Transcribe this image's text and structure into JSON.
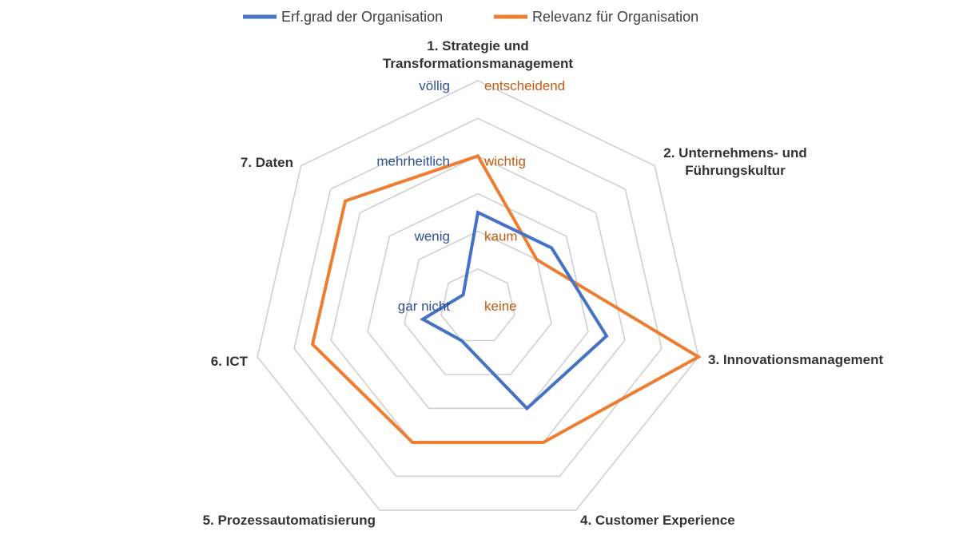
{
  "chart_data": {
    "type": "radar",
    "categories": [
      [
        "1. Strategie und",
        "Transformationsmanagement"
      ],
      [
        "2. Unternehmens- und",
        "Führungskultur"
      ],
      [
        "3. Innovationsmanagement"
      ],
      [
        "4. Customer Experience"
      ],
      [
        "5. Prozessautomatisierung"
      ],
      [
        "6. ICT"
      ],
      [
        "7. Daten"
      ]
    ],
    "rlim": [
      0,
      6
    ],
    "grid_levels": 6,
    "grid": true,
    "legend_position": "top",
    "series": [
      {
        "name": "Erf.grad der Organisation",
        "color": "#4472C4",
        "values": [
          2.5,
          2.5,
          3.5,
          3.0,
          1.0,
          1.5,
          0.5
        ]
      },
      {
        "name": "Relevanz für Organisation",
        "color": "#ED7D31",
        "values": [
          4.0,
          2.0,
          6.0,
          4.0,
          4.0,
          4.5,
          4.5
        ]
      }
    ],
    "scale_labels": [
      {
        "text": "völlig",
        "color": "#2F4F8F",
        "side": "left",
        "level": 6
      },
      {
        "text": "mehrheitlich",
        "color": "#2F4F8F",
        "side": "left",
        "level": 4
      },
      {
        "text": "wenig",
        "color": "#2F4F8F",
        "side": "left",
        "level": 2
      },
      {
        "text": "gar nicht",
        "color": "#2F4F8F",
        "side": "left",
        "level": 0
      },
      {
        "text": "entscheidend",
        "color": "#C55A11",
        "side": "right",
        "level": 6
      },
      {
        "text": "wichtig",
        "color": "#C55A11",
        "side": "right",
        "level": 4
      },
      {
        "text": "kaum",
        "color": "#C55A11",
        "side": "right",
        "level": 2
      },
      {
        "text": "keine",
        "color": "#C55A11",
        "side": "right",
        "level": 0
      }
    ]
  }
}
